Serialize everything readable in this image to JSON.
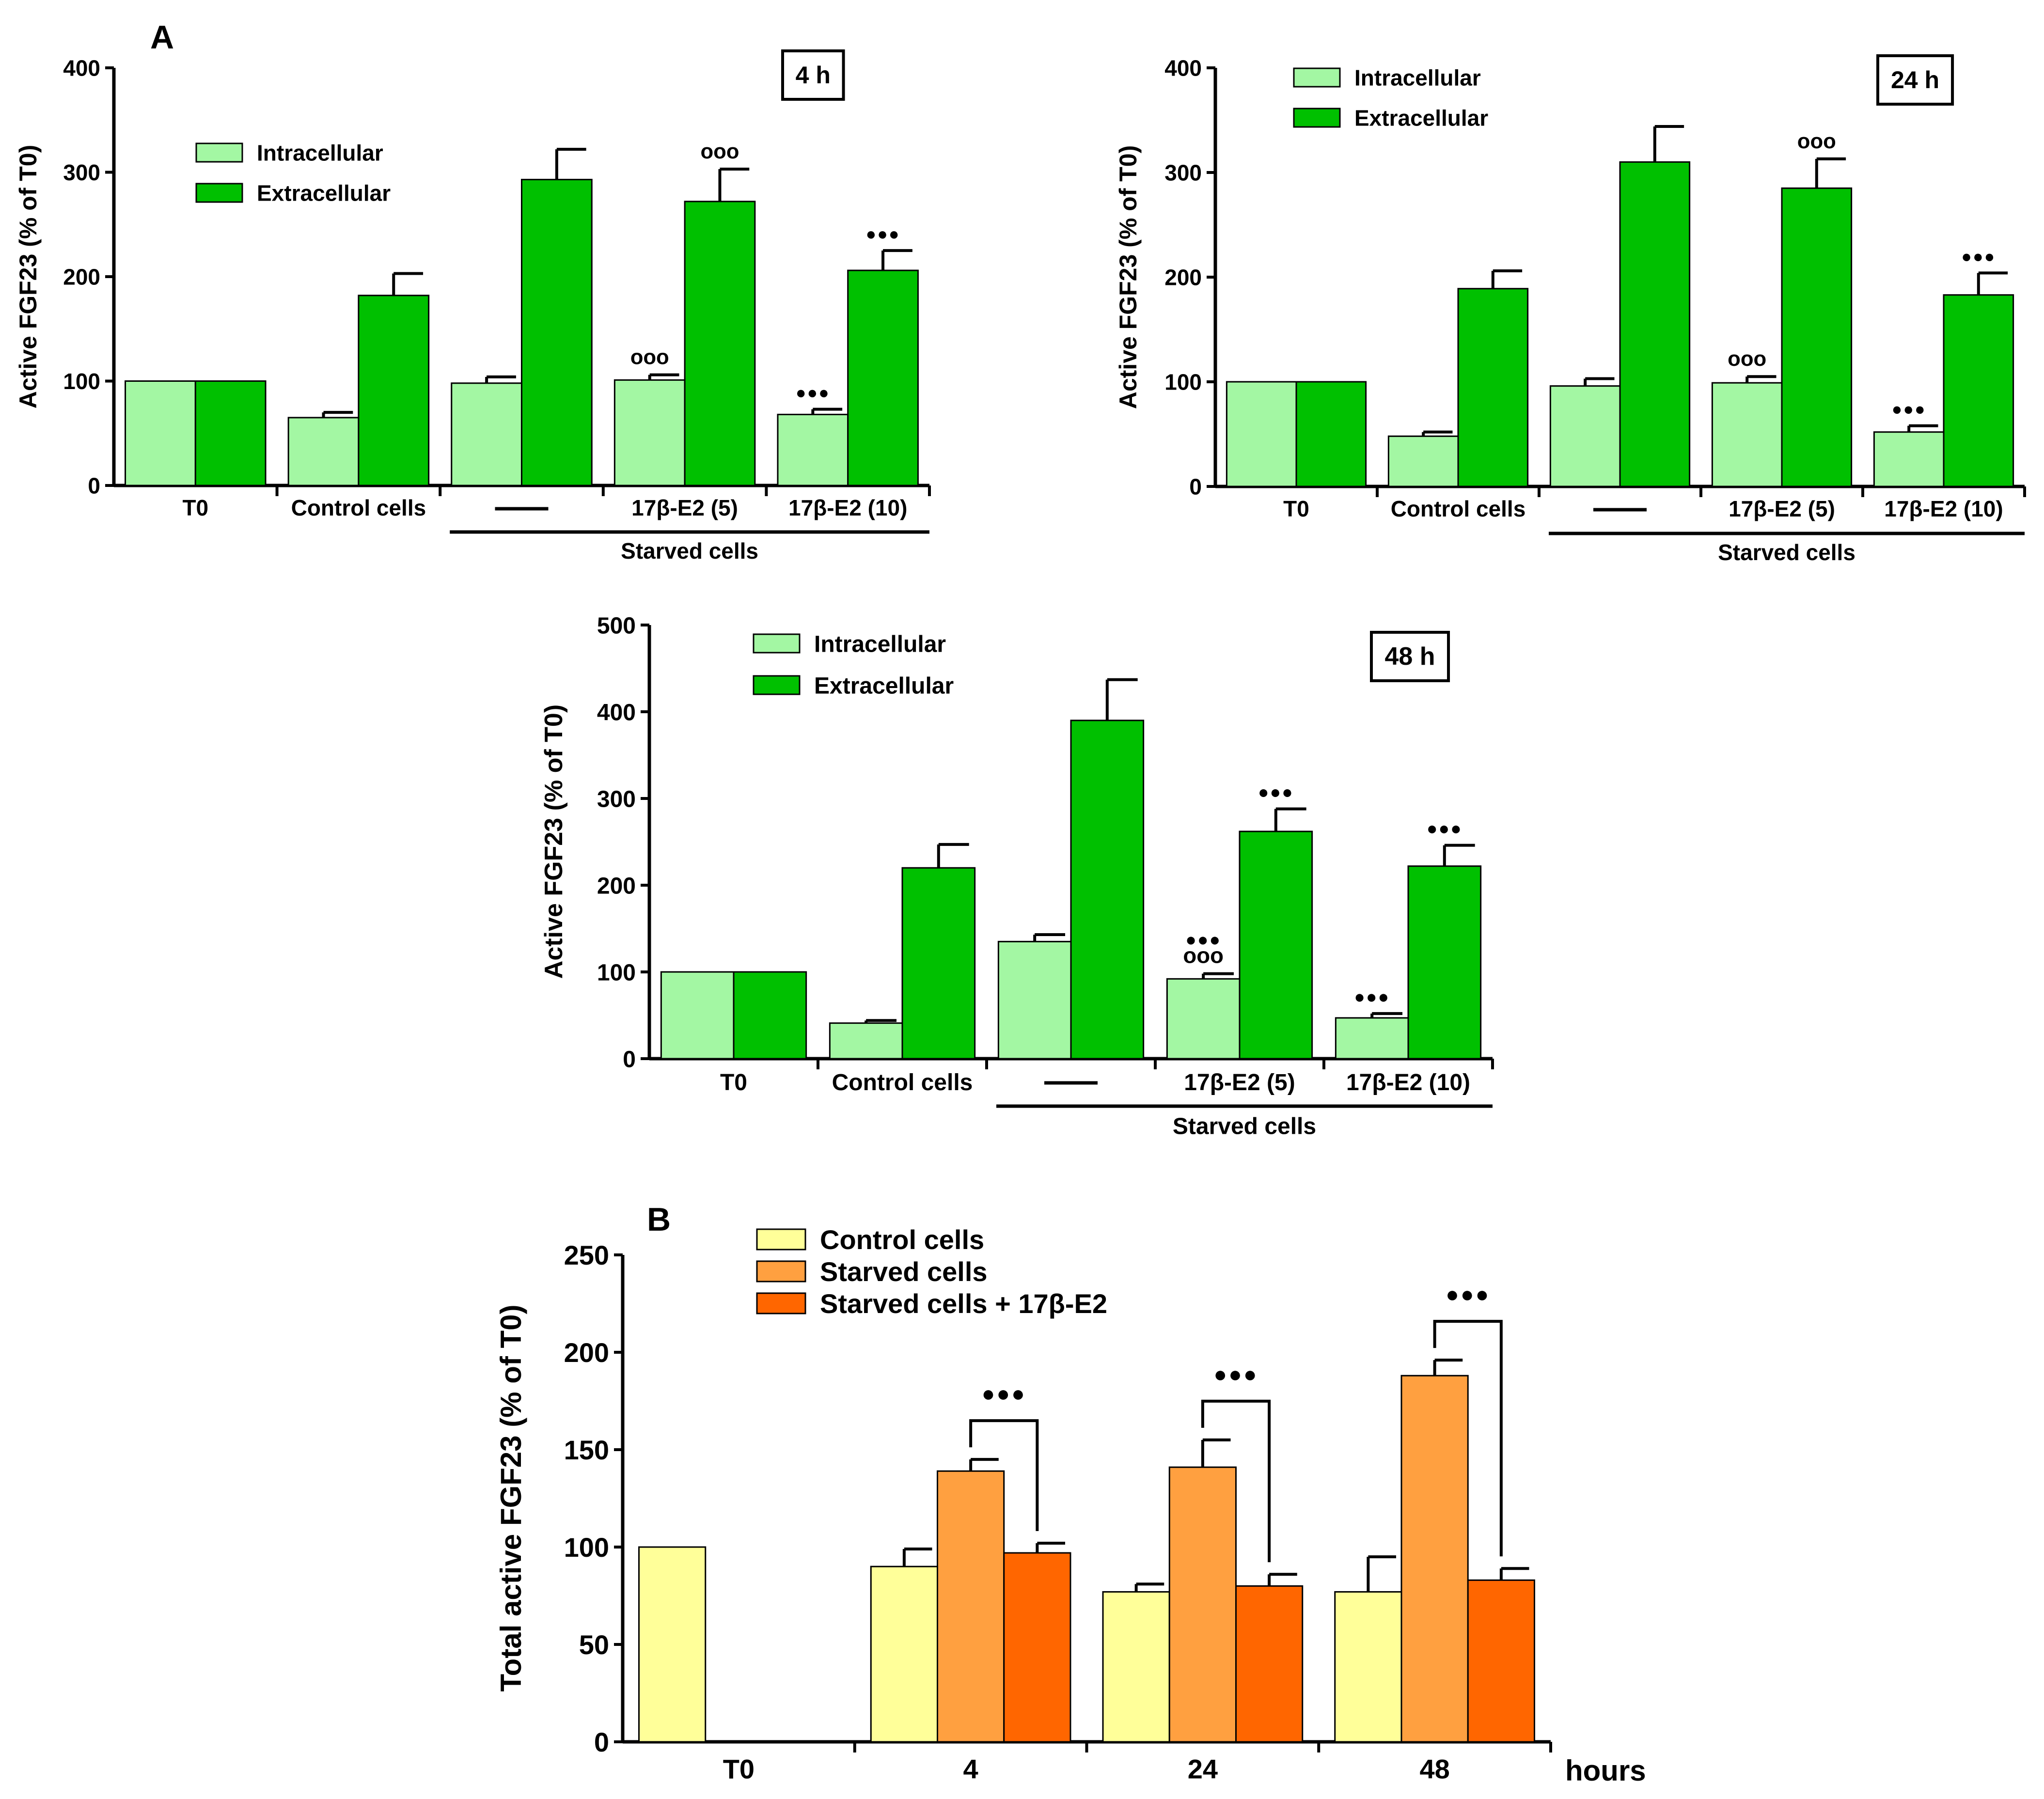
{
  "figure": {
    "panel_labels": [
      "A",
      "B"
    ]
  },
  "chart_data": [
    {
      "type": "bar",
      "panel": "A",
      "time_label": "4 h",
      "ylabel": "Active FGF23 (% of T0)",
      "xlabel": "",
      "ylim": [
        0,
        400
      ],
      "yticks": [
        0,
        100,
        200,
        300,
        400
      ],
      "categories": [
        "T0",
        "Control cells",
        "——",
        "17β-E2 (5)",
        "17β-E2 (10)"
      ],
      "group_label": "Starved cells",
      "group_span": [
        2,
        4
      ],
      "legend_position": "top-left",
      "series": [
        {
          "name": "Intracellular",
          "color": "#a3f7a3",
          "values": [
            100,
            65,
            98,
            101,
            68
          ],
          "errors": [
            0,
            5,
            6,
            5,
            5
          ],
          "markers": [
            "",
            "",
            "",
            "ooo",
            "●●●"
          ]
        },
        {
          "name": "Extracellular",
          "color": "#00c000",
          "values": [
            100,
            182,
            293,
            272,
            206
          ],
          "errors": [
            0,
            21,
            29,
            31,
            19
          ],
          "markers": [
            "",
            "",
            "",
            "ooo",
            "●●●"
          ]
        }
      ]
    },
    {
      "type": "bar",
      "panel": "A",
      "time_label": "24 h",
      "ylabel": "Active FGF23 (% of T0)",
      "xlabel": "",
      "ylim": [
        0,
        400
      ],
      "yticks": [
        0,
        100,
        200,
        300,
        400
      ],
      "categories": [
        "T0",
        "Control cells",
        "——",
        "17β-E2 (5)",
        "17β-E2 (10)"
      ],
      "group_label": "Starved cells",
      "group_span": [
        2,
        4
      ],
      "legend_position": "top-left",
      "series": [
        {
          "name": "Intracellular",
          "color": "#a3f7a3",
          "values": [
            100,
            48,
            96,
            99,
            52
          ],
          "errors": [
            0,
            4,
            7,
            6,
            6
          ],
          "markers": [
            "",
            "",
            "",
            "ooo",
            "●●●"
          ]
        },
        {
          "name": "Extracellular",
          "color": "#00c000",
          "values": [
            100,
            189,
            310,
            285,
            183
          ],
          "errors": [
            0,
            17,
            34,
            28,
            21
          ],
          "markers": [
            "",
            "",
            "",
            "ooo",
            "●●●"
          ]
        }
      ]
    },
    {
      "type": "bar",
      "panel": "A",
      "time_label": "48 h",
      "ylabel": "Active FGF23 (% of T0)",
      "xlabel": "",
      "ylim": [
        0,
        500
      ],
      "yticks": [
        0,
        100,
        200,
        300,
        400,
        500
      ],
      "categories": [
        "T0",
        "Control cells",
        "——",
        "17β-E2 (5)",
        "17β-E2 (10)"
      ],
      "group_label": "Starved cells",
      "group_span": [
        2,
        4
      ],
      "legend_position": "top-left",
      "series": [
        {
          "name": "Intracellular",
          "color": "#a3f7a3",
          "values": [
            100,
            41,
            135,
            92,
            47
          ],
          "errors": [
            0,
            3,
            8,
            6,
            5
          ],
          "markers": [
            "",
            "",
            "",
            "●●●\nooo",
            "●●●"
          ]
        },
        {
          "name": "Extracellular",
          "color": "#00c000",
          "values": [
            100,
            220,
            390,
            262,
            222
          ],
          "errors": [
            0,
            27,
            47,
            26,
            24
          ],
          "markers": [
            "",
            "",
            "",
            "●●●",
            "●●●"
          ]
        }
      ]
    },
    {
      "type": "bar",
      "panel": "B",
      "ylabel": "Total active FGF23 (% of T0)",
      "xlabel": "hours",
      "ylim": [
        0,
        250
      ],
      "yticks": [
        0,
        50,
        100,
        150,
        200,
        250
      ],
      "categories": [
        "T0",
        "4",
        "24",
        "48"
      ],
      "legend_position": "top-left",
      "series": [
        {
          "name": "Control  cells",
          "color": "#ffff99",
          "values": [
            100,
            90,
            77,
            77
          ],
          "errors": [
            0,
            9,
            4,
            18
          ]
        },
        {
          "name": "Starved cells",
          "color": "#ffa040",
          "values": [
            null,
            139,
            141,
            188
          ],
          "errors": [
            0,
            6,
            14,
            8
          ]
        },
        {
          "name": "Starved cells + 17β-E2",
          "color": "#ff6600",
          "values": [
            null,
            97,
            80,
            83
          ],
          "errors": [
            0,
            5,
            6,
            6
          ]
        }
      ],
      "comparisons": [
        {
          "category": "4",
          "between": [
            "Starved cells",
            "Starved cells + 17β-E2"
          ],
          "marker": "●●●"
        },
        {
          "category": "24",
          "between": [
            "Starved cells",
            "Starved cells + 17β-E2"
          ],
          "marker": "●●●"
        },
        {
          "category": "48",
          "between": [
            "Starved cells",
            "Starved cells + 17β-E2"
          ],
          "marker": "●●●"
        }
      ]
    }
  ]
}
